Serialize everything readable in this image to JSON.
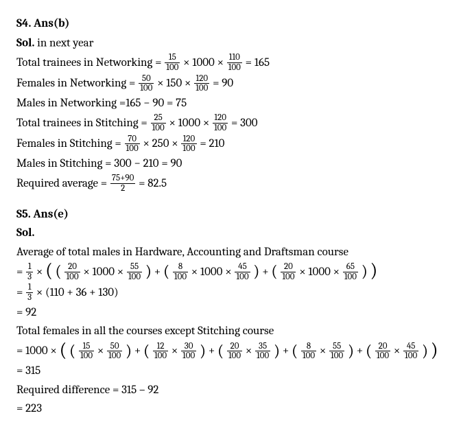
{
  "s4": {
    "header": "S4. Ans(b)",
    "sol_label": "Sol.",
    "sol_rest": " in next year",
    "lines": {
      "l1a": "Total trainees in Networking =",
      "l1b": "= 165",
      "l2a": "Females in Networking =",
      "l2b": "= 90",
      "l3": "Males in Networking =165 − 90 = 75",
      "l4a": "Total trainees in Stitching =",
      "l4b": "= 300",
      "l5a": "Females in Stitching =",
      "l5b": "= 210",
      "l6": "Males in Stitching = 300 − 210 = 90",
      "l7a": "Required average =",
      "l7b": "= 82.5"
    },
    "fracs": {
      "f15_100": {
        "n": "15",
        "d": "100"
      },
      "f110_100": {
        "n": "110",
        "d": "100"
      },
      "f50_100": {
        "n": "50",
        "d": "100"
      },
      "f120_100": {
        "n": "120",
        "d": "100"
      },
      "f25_100": {
        "n": "25",
        "d": "100"
      },
      "f70_100": {
        "n": "70",
        "d": "100"
      },
      "f75p90_2": {
        "n": "75+90",
        "d": "2"
      }
    },
    "ops": {
      "x1000x": "× 1000 ×",
      "x150x": "× 150 ×",
      "x250x": "× 250 ×"
    }
  },
  "s5": {
    "header": "S5. Ans(e)",
    "sol_label": "Sol.",
    "l1": "Average of total males in Hardware, Accounting and Draftsman course",
    "l3": "× (110 + 36 + 130)",
    "l4": "= 92",
    "l5": "Total females in all the courses except Stitching course",
    "l6pre": "= 1000 ×",
    "l7": "= 315",
    "l8": "Required difference = 315 – 92",
    "l9": "= 223",
    "ops": {
      "eq": "=",
      "plus": "+",
      "x1000x": "× 1000 ×",
      "times": "×"
    },
    "fracs": {
      "f1_3": {
        "n": "1",
        "d": "3"
      },
      "f20_100": {
        "n": "20",
        "d": "100"
      },
      "f55_100": {
        "n": "55",
        "d": "100"
      },
      "f8_100": {
        "n": "8",
        "d": "100"
      },
      "f45_100": {
        "n": "45",
        "d": "100"
      },
      "f65_100": {
        "n": "65",
        "d": "100"
      },
      "f15_100": {
        "n": "15",
        "d": "100"
      },
      "f50_100": {
        "n": "50",
        "d": "100"
      },
      "f12_100": {
        "n": "12",
        "d": "100"
      },
      "f30_100": {
        "n": "30",
        "d": "100"
      },
      "f35_100": {
        "n": "35",
        "d": "100"
      }
    }
  }
}
